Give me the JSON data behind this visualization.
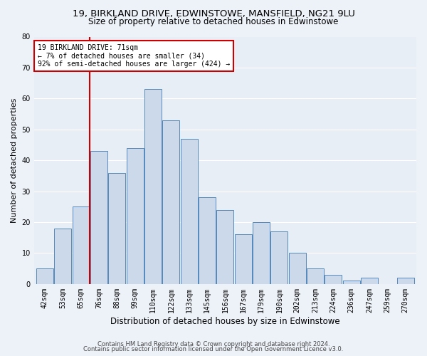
{
  "title_line1": "19, BIRKLAND DRIVE, EDWINSTOWE, MANSFIELD, NG21 9LU",
  "title_line2": "Size of property relative to detached houses in Edwinstowe",
  "xlabel": "Distribution of detached houses by size in Edwinstowe",
  "ylabel": "Number of detached properties",
  "footnote_line1": "Contains HM Land Registry data © Crown copyright and database right 2024.",
  "footnote_line2": "Contains public sector information licensed under the Open Government Licence v3.0.",
  "bar_labels": [
    "42sqm",
    "53sqm",
    "65sqm",
    "76sqm",
    "88sqm",
    "99sqm",
    "110sqm",
    "122sqm",
    "133sqm",
    "145sqm",
    "156sqm",
    "167sqm",
    "179sqm",
    "190sqm",
    "202sqm",
    "213sqm",
    "224sqm",
    "236sqm",
    "247sqm",
    "259sqm",
    "270sqm"
  ],
  "bar_values": [
    5,
    18,
    25,
    43,
    36,
    44,
    63,
    53,
    47,
    28,
    24,
    16,
    20,
    17,
    10,
    5,
    3,
    1,
    2,
    0,
    2
  ],
  "bar_color": "#ccd9ea",
  "bar_edge_color": "#5588bb",
  "annotation_text": "19 BIRKLAND DRIVE: 71sqm\n← 7% of detached houses are smaller (34)\n92% of semi-detached houses are larger (424) →",
  "annotation_box_edge": "#cc0000",
  "vline_pos": 2.5,
  "vline_color": "#cc0000",
  "ylim": [
    0,
    80
  ],
  "yticks": [
    0,
    10,
    20,
    30,
    40,
    50,
    60,
    70,
    80
  ],
  "bg_color": "#edf1f8",
  "plot_bg_color": "#e8eef6",
  "grid_color": "#ffffff",
  "title_fontsize": 9.5,
  "subtitle_fontsize": 8.5,
  "ylabel_fontsize": 8,
  "xlabel_fontsize": 8.5,
  "tick_fontsize": 7,
  "annotation_fontsize": 7,
  "footnote_fontsize": 6
}
